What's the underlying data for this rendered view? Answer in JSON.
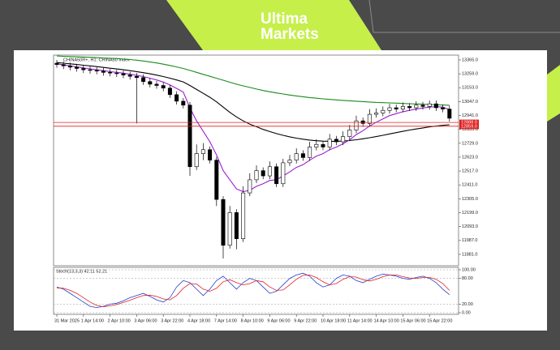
{
  "brand": {
    "line1": "Ultima",
    "line2": "Markets"
  },
  "chart_data": [
    {
      "type": "candlestick",
      "title": "CHINA50R+, H1: CHINA50 Index",
      "categories": [
        "31 Mar 2025",
        null,
        null,
        null,
        "1 Apr 14:00",
        null,
        null,
        null,
        "2 Apr 10:00",
        null,
        null,
        null,
        "3 Apr 06:00",
        null,
        null,
        null,
        "3 Apr 22:00",
        null,
        null,
        null,
        "4 Apr 18:00",
        null,
        null,
        null,
        "7 Apr 14:00",
        null,
        null,
        null,
        "8 Apr 10:00",
        null,
        null,
        null,
        "9 Apr 06:00",
        null,
        null,
        null,
        "9 Apr 22:00",
        null,
        null,
        null,
        "10 Apr 18:00",
        null,
        null,
        null,
        "11 Apr 14:00",
        null,
        null,
        null,
        "14 Apr 10:00",
        null,
        null,
        null,
        "15 Apr 06:00",
        null,
        null,
        null,
        "15 Apr 22:00",
        null,
        null,
        null
      ],
      "open": [
        13340,
        13330,
        13320,
        13310,
        13300,
        13290,
        13285,
        13280,
        13270,
        13265,
        13260,
        13250,
        13240,
        13230,
        13200,
        13180,
        13170,
        13150,
        13100,
        13050,
        13020,
        12550,
        12650,
        12680,
        12600,
        12300,
        11950,
        12200,
        12000,
        12350,
        12450,
        12520,
        12480,
        12550,
        12420,
        12580,
        12600,
        12650,
        12620,
        12700,
        12720,
        12700,
        12760,
        12740,
        12780,
        12830,
        12900,
        12880,
        12950,
        12960,
        12980,
        13000,
        12990,
        13010,
        13000,
        13020,
        13010,
        13030,
        13000,
        12990
      ],
      "high": [
        13365,
        13355,
        13345,
        13335,
        13325,
        13315,
        13310,
        13305,
        13295,
        13290,
        13285,
        13275,
        13265,
        13255,
        13225,
        13205,
        13195,
        13175,
        13125,
        13075,
        13045,
        12720,
        12730,
        12705,
        12625,
        12325,
        12250,
        12225,
        12400,
        12500,
        12560,
        12545,
        12590,
        12575,
        12610,
        12640,
        12690,
        12675,
        12740,
        12760,
        12745,
        12800,
        12785,
        12820,
        12870,
        12940,
        12925,
        12990,
        12995,
        13010,
        13030,
        13025,
        13040,
        13035,
        13050,
        13045,
        13055,
        13055,
        13025,
        13015
      ],
      "low": [
        13305,
        13295,
        13285,
        13275,
        13265,
        13260,
        13255,
        13245,
        13240,
        13235,
        13225,
        13215,
        12880,
        13175,
        13155,
        13145,
        13125,
        13075,
        13025,
        12995,
        12480,
        12525,
        12600,
        12575,
        12250,
        11850,
        11925,
        11920,
        11975,
        12325,
        12425,
        12455,
        12455,
        12395,
        12395,
        12555,
        12575,
        12595,
        12595,
        12675,
        12675,
        12675,
        12715,
        12715,
        12755,
        12805,
        12855,
        12855,
        12925,
        12935,
        12955,
        12965,
        12965,
        12975,
        12975,
        12985,
        12985,
        12975,
        12965,
        12895
      ],
      "close": [
        13330,
        13320,
        13310,
        13300,
        13290,
        13285,
        13280,
        13270,
        13265,
        13260,
        13250,
        13240,
        13230,
        13200,
        13180,
        13170,
        13150,
        13100,
        13050,
        13020,
        12550,
        12650,
        12680,
        12600,
        12300,
        11950,
        12200,
        12000,
        12350,
        12450,
        12520,
        12480,
        12550,
        12420,
        12580,
        12600,
        12650,
        12620,
        12700,
        12720,
        12700,
        12760,
        12740,
        12780,
        12830,
        12900,
        12880,
        12950,
        12960,
        12980,
        13000,
        12990,
        13010,
        13000,
        13020,
        13010,
        13030,
        13000,
        12990,
        12920
      ],
      "up_color": "#ffffff",
      "down_color": "#000000",
      "lines": [
        {
          "color": "#1a8a1a",
          "values": [
            13395,
            13393,
            13391,
            13389,
            13387,
            13385,
            13383,
            13380,
            13378,
            13376,
            13372,
            13368,
            13363,
            13357,
            13350,
            13342,
            13333,
            13323,
            13312,
            13300,
            13285,
            13270,
            13255,
            13240,
            13225,
            13210,
            13195,
            13180,
            13167,
            13155,
            13143,
            13132,
            13122,
            13113,
            13105,
            13097,
            13090,
            13084,
            13078,
            13073,
            13068,
            13064,
            13060,
            13056,
            13053,
            13050,
            13047,
            13044,
            13041,
            13039,
            13037,
            13035,
            13033,
            13031,
            13029,
            13027,
            13025,
            13023,
            13021,
            13019
          ]
        },
        {
          "color": "#000000",
          "values": [
            13345,
            13340,
            13335,
            13330,
            13325,
            13320,
            13314,
            13308,
            13302,
            13296,
            13290,
            13283,
            13276,
            13268,
            13259,
            13249,
            13238,
            13226,
            13212,
            13197,
            13170,
            13140,
            13110,
            13080,
            13045,
            13005,
            12965,
            12930,
            12900,
            12875,
            12855,
            12835,
            12818,
            12803,
            12790,
            12778,
            12768,
            12760,
            12753,
            12748,
            12745,
            12744,
            12744,
            12746,
            12750,
            12756,
            12763,
            12771,
            12780,
            12790,
            12800,
            12810,
            12820,
            12830,
            12838,
            12846,
            12854,
            12860,
            12866,
            12870
          ]
        },
        {
          "color": "#9b1fd0",
          "values": [
            13335,
            13328,
            13320,
            13312,
            13304,
            13297,
            13290,
            13283,
            13276,
            13270,
            13264,
            13256,
            13248,
            13238,
            13226,
            13212,
            13196,
            13174,
            13148,
            13120,
            13000,
            12900,
            12820,
            12740,
            12640,
            12520,
            12450,
            12380,
            12360,
            12370,
            12400,
            12420,
            12445,
            12450,
            12480,
            12510,
            12545,
            12565,
            12600,
            12630,
            12650,
            12680,
            12700,
            12725,
            12755,
            12795,
            12825,
            12860,
            12890,
            12915,
            12940,
            12955,
            12970,
            12980,
            12990,
            12998,
            13005,
            13008,
            13005,
            12985
          ]
        }
      ],
      "levels": [
        {
          "value": 12888,
          "label": "12888.0",
          "color": "#e02020"
        },
        {
          "value": 12859,
          "label": "12859.0",
          "color": "#e02020"
        }
      ],
      "ylim": [
        11794,
        13402
      ],
      "yticks": [
        {
          "value": 13365,
          "label": "13365.0"
        },
        {
          "value": 13259,
          "label": "13259.0"
        },
        {
          "value": 13153,
          "label": "13153.0"
        },
        {
          "value": 13047,
          "label": "13047.0"
        },
        {
          "value": 12941,
          "label": "12941.0"
        },
        {
          "value": 12835,
          "label": "12835.0"
        },
        {
          "value": 12729,
          "label": "12729.0"
        },
        {
          "value": 12623,
          "label": "12623.0"
        },
        {
          "value": 12517,
          "label": "12517.0"
        },
        {
          "value": 12411,
          "label": "12411.0"
        },
        {
          "value": 12305,
          "label": "12305.0"
        },
        {
          "value": 12199,
          "label": "12199.0"
        },
        {
          "value": 12093,
          "label": "12093.0"
        },
        {
          "value": 11987,
          "label": "11987.0"
        },
        {
          "value": 11881,
          "label": "11881.0"
        }
      ]
    },
    {
      "type": "line",
      "title": "Stoch(13,3,3) 42.11 52.21",
      "series": [
        {
          "color": "#1f3fd0",
          "values": [
            60,
            55,
            45,
            35,
            25,
            15,
            12,
            15,
            20,
            22,
            28,
            35,
            40,
            45,
            38,
            30,
            25,
            35,
            60,
            75,
            70,
            55,
            40,
            55,
            75,
            85,
            70,
            55,
            70,
            80,
            75,
            60,
            45,
            50,
            65,
            80,
            88,
            92,
            85,
            70,
            60,
            65,
            80,
            88,
            85,
            75,
            70,
            78,
            85,
            90,
            88,
            85,
            80,
            78,
            82,
            85,
            80,
            70,
            55,
            42
          ]
        },
        {
          "color": "#e02020",
          "values": [
            58,
            57,
            52,
            45,
            35,
            25,
            17,
            14,
            16,
            19,
            24,
            29,
            35,
            40,
            41,
            38,
            32,
            30,
            40,
            57,
            68,
            67,
            55,
            50,
            57,
            72,
            77,
            70,
            65,
            68,
            75,
            72,
            60,
            52,
            53,
            65,
            78,
            87,
            88,
            82,
            72,
            65,
            68,
            78,
            84,
            83,
            77,
            74,
            78,
            84,
            88,
            88,
            84,
            81,
            80,
            82,
            82,
            78,
            68,
            52
          ]
        }
      ],
      "ylim": [
        0,
        100
      ],
      "yticks": [
        {
          "value": 100,
          "label": "100.00"
        },
        {
          "value": 80,
          "label": "80.00"
        },
        {
          "value": 20,
          "label": "20.00"
        },
        {
          "value": 0,
          "label": "0.00"
        }
      ],
      "grid": true
    }
  ]
}
